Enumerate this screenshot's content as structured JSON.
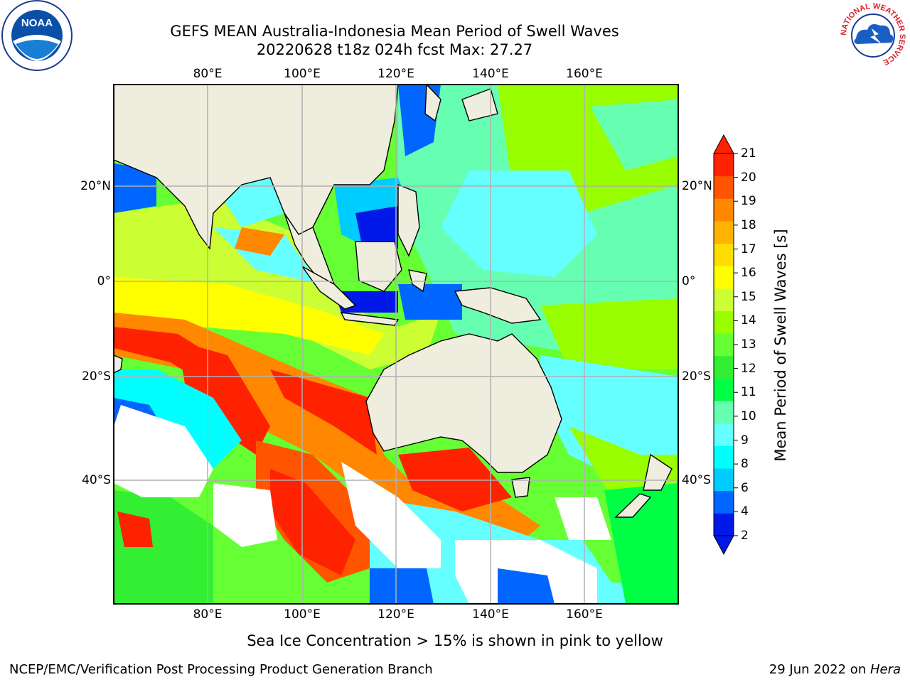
{
  "title": {
    "line1": "GEFS MEAN Australia-Indonesia Mean Period of Swell Waves",
    "line2": "20220628 t18z 024h fcst   Max: 27.27"
  },
  "logos": {
    "noaa_text": "NOAA",
    "noaa_ring": "NATIONAL OCEANIC AND ATMOSPHERIC ADMINISTRATION · U.S. DEPARTMENT OF COMMERCE",
    "nws_ring": "NATIONAL WEATHER SERVICE"
  },
  "map": {
    "lon_ticks": [
      "80°E",
      "100°E",
      "120°E",
      "140°E",
      "160°E"
    ],
    "lat_ticks": [
      "20°N",
      "0°",
      "20°S",
      "40°S"
    ],
    "colors": {
      "land": "#efedde",
      "open": "#ffffff",
      "frame": "#000000",
      "grid": "#b0b0b0"
    }
  },
  "colorbar": {
    "label": "Mean Period of Swell Waves [s]",
    "ticks": [
      "21",
      "20",
      "19",
      "18",
      "17",
      "16",
      "15",
      "14",
      "13",
      "12",
      "11",
      "10",
      "9",
      "8",
      "6",
      "4",
      "2"
    ],
    "colors": [
      "#0018e8",
      "#0066ff",
      "#00ccff",
      "#00ffff",
      "#66ffff",
      "#66ffb2",
      "#00ff44",
      "#33ee33",
      "#66ff33",
      "#99ff00",
      "#ccff33",
      "#ffff00",
      "#ffdd00",
      "#ffb300",
      "#ff8800",
      "#ff5500",
      "#ff2200"
    ],
    "under_color": "#0018e8",
    "over_color": "#ff2200"
  },
  "footer": {
    "note": "Sea Ice Concentration > 15% is shown in pink to yellow",
    "left": "NCEP/EMC/Verification Post Processing Product Generation Branch",
    "right_prefix": "29 Jun 2022 on ",
    "right_machine": "Hera"
  }
}
